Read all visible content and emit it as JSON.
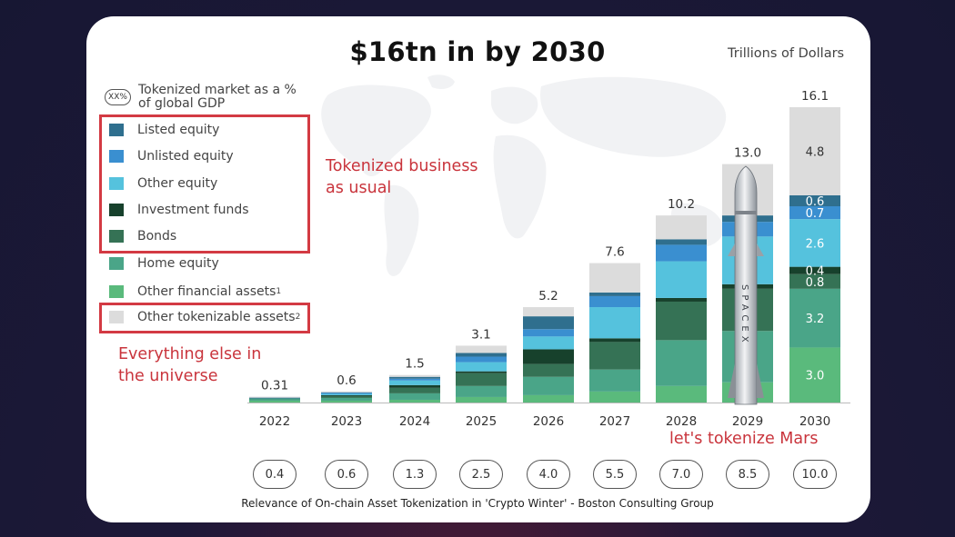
{
  "title": "$16tn in by 2030",
  "unit_label": "Trillions of Dollars",
  "gdp_legend": {
    "badge": "XX%",
    "text": "Tokenized market as a % of global GDP"
  },
  "legend": [
    {
      "label": "Listed equity",
      "color": "#2f6f8e"
    },
    {
      "label": "Unlisted equity",
      "color": "#3a8fd0"
    },
    {
      "label": "Other equity",
      "color": "#55c2dd"
    },
    {
      "label": "Investment funds",
      "color": "#17412c"
    },
    {
      "label": "Bonds",
      "color": "#357255"
    },
    {
      "label": "Home equity",
      "color": "#4aa588"
    },
    {
      "label": "Other financial assets",
      "sup": "1",
      "color": "#5aba7c"
    },
    {
      "label": "Other tokenizable assets",
      "sup": "2",
      "color": "#dcdcdc"
    }
  ],
  "annotations": {
    "business_as_usual": [
      "Tokenized business",
      "as usual"
    ],
    "everything_else": [
      "Everything else in",
      "the universe"
    ],
    "mars": "let's tokenize Mars"
  },
  "rocket_text": "SPACEX",
  "source": "Relevance of On-chain Asset Tokenization in 'Crypto Winter' - Boston Consulting Group",
  "chart_data": {
    "type": "bar",
    "stacked": true,
    "title": "$16tn in by 2030",
    "ylabel": "Trillions of Dollars",
    "ylim": [
      0,
      16.1
    ],
    "categories": [
      "2022",
      "2023",
      "2024",
      "2025",
      "2026",
      "2027",
      "2028",
      "2029",
      "2030"
    ],
    "totals": [
      0.31,
      0.6,
      1.5,
      3.1,
      5.2,
      7.6,
      10.2,
      13.0,
      16.1
    ],
    "total_labels": [
      "0.31",
      "0.6",
      "1.5",
      "3.1",
      "5.2",
      "7.6",
      "10.2",
      "13.0",
      "16.1"
    ],
    "gdp_percent": [
      "0.4",
      "0.6",
      "1.3",
      "2.5",
      "4.0",
      "5.5",
      "7.0",
      "8.5",
      "10.0"
    ],
    "series": [
      {
        "name": "Other financial assets",
        "color": "#5aba7c",
        "values": [
          0.1,
          0.1,
          0.15,
          0.3,
          0.4,
          0.6,
          0.9,
          1.1,
          3.0
        ],
        "labels": [
          "",
          "",
          "",
          "",
          "",
          "",
          "",
          "",
          "3.0"
        ]
      },
      {
        "name": "Home equity",
        "color": "#4aa588",
        "values": [
          0.1,
          0.15,
          0.35,
          0.6,
          1.0,
          1.2,
          2.5,
          2.8,
          3.2
        ],
        "labels": [
          "",
          "",
          "",
          "",
          "",
          "",
          "",
          "",
          "3.2"
        ]
      },
      {
        "name": "Bonds",
        "color": "#357255",
        "values": [
          0.04,
          0.1,
          0.3,
          0.7,
          0.7,
          1.5,
          2.1,
          2.3,
          0.8
        ],
        "labels": [
          "",
          "",
          "",
          "",
          "",
          "",
          "",
          "",
          "0.8"
        ]
      },
      {
        "name": "Investment funds",
        "color": "#17412c",
        "values": [
          0.0,
          0.05,
          0.15,
          0.1,
          0.8,
          0.2,
          0.2,
          0.25,
          0.4
        ],
        "labels": [
          "",
          "",
          "",
          "",
          "",
          "",
          "",
          "",
          "0.4"
        ]
      },
      {
        "name": "Other equity",
        "color": "#55c2dd",
        "values": [
          0.04,
          0.07,
          0.25,
          0.5,
          0.7,
          1.7,
          2.0,
          2.6,
          2.6
        ],
        "labels": [
          "",
          "",
          "",
          "",
          "",
          "",
          "",
          "",
          "2.6"
        ]
      },
      {
        "name": "Unlisted equity",
        "color": "#3a8fd0",
        "values": [
          0.01,
          0.06,
          0.1,
          0.3,
          0.4,
          0.6,
          0.9,
          0.8,
          0.7
        ],
        "labels": [
          "",
          "",
          "",
          "",
          "",
          "",
          "",
          "",
          "0.7"
        ]
      },
      {
        "name": "Listed equity",
        "color": "#2f6f8e",
        "values": [
          0.01,
          0.05,
          0.1,
          0.2,
          0.7,
          0.2,
          0.3,
          0.35,
          0.6
        ],
        "labels": [
          "",
          "",
          "",
          "",
          "",
          "",
          "",
          "",
          "0.6"
        ]
      },
      {
        "name": "Other tokenizable assets",
        "color": "#dcdcdc",
        "values": [
          0.01,
          0.02,
          0.1,
          0.4,
          0.5,
          1.6,
          1.3,
          2.8,
          4.8
        ],
        "labels": [
          "",
          "",
          "",
          "",
          "",
          "",
          "",
          "",
          "4.8"
        ]
      }
    ]
  }
}
